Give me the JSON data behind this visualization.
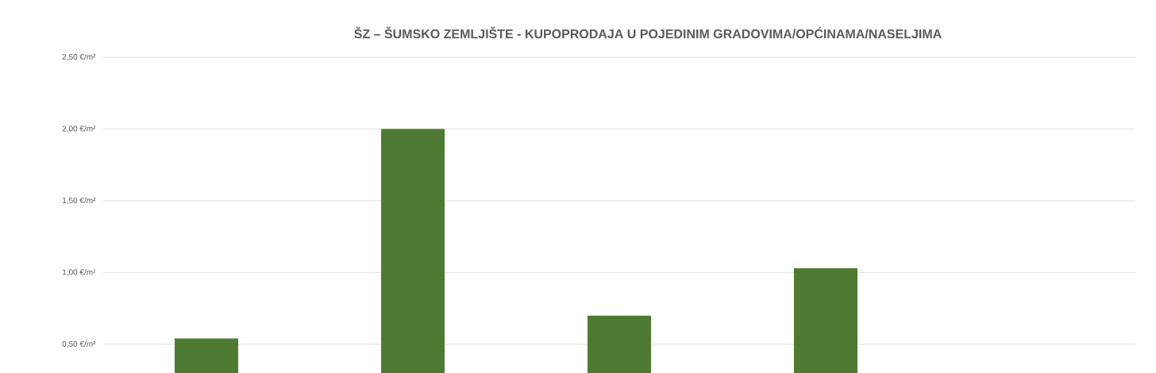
{
  "chart_data": {
    "type": "bar",
    "title": "ŠZ – ŠUMSKO ZEMLJIŠTE - KUPOPRODAJA  U POJEDINIM GRADOVIMA/OPĆINAMA/NASELJIMA",
    "categories": [
      null,
      null,
      null,
      null,
      null
    ],
    "values": [
      0.54,
      2.0,
      0.7,
      1.03,
      null
    ],
    "color": "#4e7a31",
    "ylim": [
      0.3,
      2.5
    ],
    "yticks": [
      {
        "value": 0.5,
        "label": "0,50 €/m²"
      },
      {
        "value": 1.0,
        "label": "1,00 €/m²"
      },
      {
        "value": 1.5,
        "label": "1,50 €/m²"
      },
      {
        "value": 2.0,
        "label": "2,00 €/m²"
      },
      {
        "value": 2.5,
        "label": "2,50 €/m²"
      }
    ],
    "grid": "y"
  }
}
